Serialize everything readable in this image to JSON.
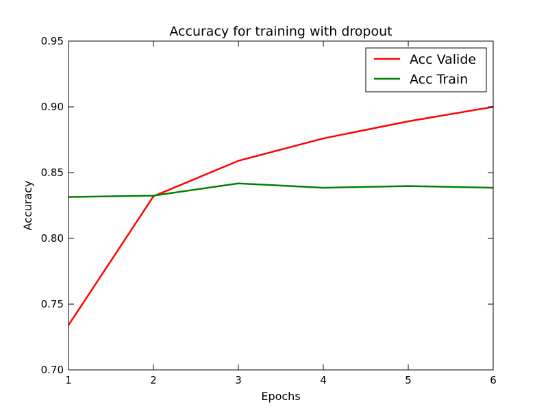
{
  "chart_data": {
    "type": "line",
    "title": "Accuracy for training with dropout",
    "xlabel": "Epochs",
    "ylabel": "Accuracy",
    "x": [
      1,
      2,
      3,
      4,
      5,
      6
    ],
    "xlim": [
      1,
      6
    ],
    "ylim": [
      0.7,
      0.95
    ],
    "xticks": [
      1,
      2,
      3,
      4,
      5,
      6
    ],
    "xtick_labels": [
      "1",
      "2",
      "3",
      "4",
      "5",
      "6"
    ],
    "yticks": [
      0.7,
      0.75,
      0.8,
      0.85,
      0.9,
      0.95
    ],
    "ytick_labels": [
      "0.70",
      "0.75",
      "0.80",
      "0.85",
      "0.90",
      "0.95"
    ],
    "grid": false,
    "legend_position": "top-right",
    "series": [
      {
        "name": "Acc Valide",
        "color": "#ff0000",
        "values": [
          0.734,
          0.832,
          0.859,
          0.876,
          0.889,
          0.9
        ]
      },
      {
        "name": "Acc Train",
        "color": "#008000",
        "values": [
          0.8315,
          0.8325,
          0.8418,
          0.8385,
          0.8398,
          0.8385
        ]
      }
    ]
  }
}
